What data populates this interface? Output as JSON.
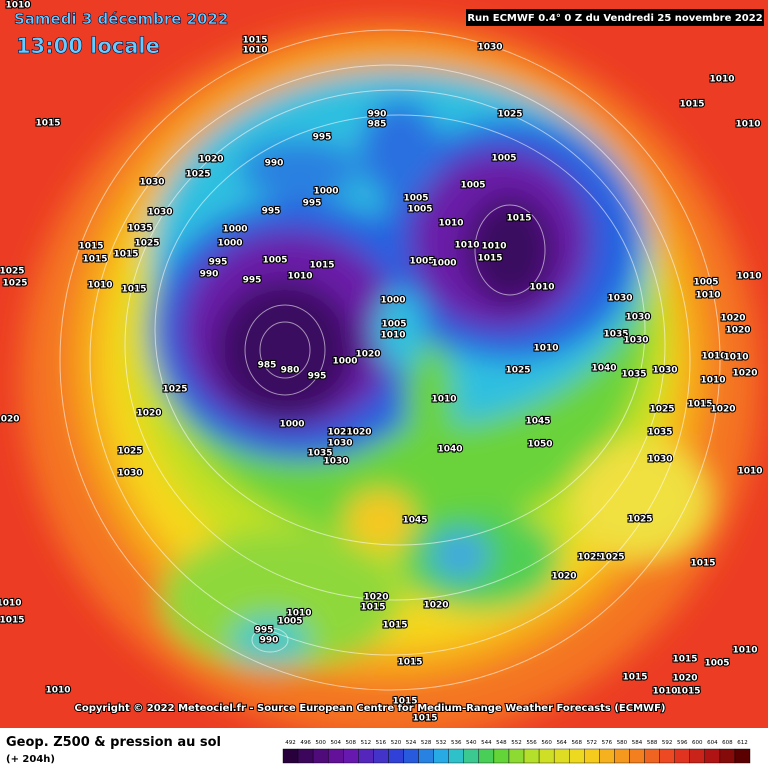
{
  "header": {
    "date": "Samedi 3 décembre 2022",
    "time": "13:00 locale",
    "run": "Run ECMWF 0.4° 0 Z du Vendredi 25 novembre 2022"
  },
  "copyright": "Copyright © 2022 Meteociel.fr - Source European Centre for Medium-Range Weather Forecasts (ECMWF)",
  "footer": {
    "title": "Geop. Z500 & pression au sol",
    "lead": "(+ 204h)"
  },
  "scale": {
    "labels": [
      492,
      496,
      500,
      504,
      508,
      512,
      516,
      520,
      524,
      528,
      532,
      536,
      540,
      544,
      548,
      552,
      556,
      560,
      564,
      568,
      572,
      576,
      580,
      584,
      588,
      592,
      596,
      600,
      604,
      608,
      612
    ]
  },
  "isobar_labels": [
    "1010",
    "1015",
    "1010",
    "1030",
    "1010",
    "1015",
    "1015",
    "990",
    "985",
    "1025",
    "1010",
    "995",
    "990",
    "1020",
    "1025",
    "1030",
    "1005",
    "1005",
    "1000",
    "995",
    "1005",
    "1005",
    "995",
    "1030",
    "1035",
    "1010",
    "1015",
    "1000",
    "1025",
    "1000",
    "1015",
    "1015",
    "1010",
    "1010",
    "1005",
    "1015",
    "995",
    "1005",
    "1000",
    "1015",
    "1015",
    "990",
    "1010",
    "995",
    "1025",
    "1025",
    "1005",
    "1010",
    "1010",
    "1015",
    "1010",
    "1000",
    "1030",
    "1010",
    "1020",
    "1030",
    "1020",
    "1005",
    "1035",
    "1010",
    "1030",
    "1010",
    "1020",
    "1010",
    "1010",
    "1000",
    "985",
    "980",
    "1040",
    "1035",
    "1030",
    "1020",
    "995",
    "1010",
    "1025",
    "1025",
    "1010",
    "1015",
    "1025",
    "1020",
    "1020",
    "1045",
    "1000",
    "1025",
    "1030",
    "1020",
    "1035",
    "1050",
    "1040",
    "1035",
    "1030",
    "1025",
    "1030",
    "1020",
    "1030",
    "1010",
    "1045",
    "1025",
    "1025",
    "1025",
    "1020",
    "1015",
    "1020",
    "1015",
    "1020",
    "1010",
    "1010",
    "1005",
    "1015",
    "995",
    "990",
    "1015",
    "1015",
    "1015",
    "1010",
    "1005",
    "1020",
    "1015",
    "1015",
    "1010",
    "1010",
    "1015",
    "1015"
  ]
}
